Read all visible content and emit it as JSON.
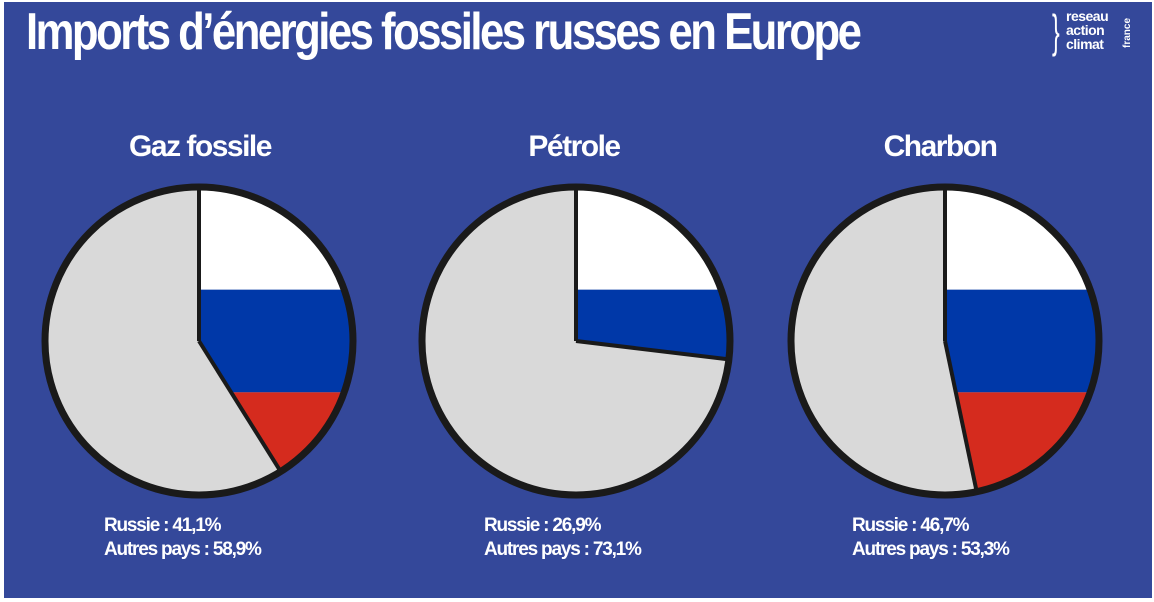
{
  "header": {
    "title": "Imports d’énergies fossiles russes en Europe",
    "logo_words": [
      "reseau",
      "action",
      "climat"
    ],
    "logo_country": "france"
  },
  "colors": {
    "background": "#34489a",
    "russia_white": "#ffffff",
    "russia_blue": "#0038a8",
    "russia_red": "#d52b1e",
    "other_countries": "#d9d9d9",
    "outline": "#1a1a1a"
  },
  "chart_data": [
    {
      "type": "pie",
      "title": "Gaz fossile",
      "labels": [
        "Russie",
        "Autres pays"
      ],
      "values": [
        41.1,
        58.9
      ],
      "legend": [
        "Russie : 41,1%",
        "Autres pays : 58,9%"
      ]
    },
    {
      "type": "pie",
      "title": "Pétrole",
      "labels": [
        "Russie",
        "Autres pays"
      ],
      "values": [
        26.9,
        73.1
      ],
      "legend": [
        "Russie : 26,9%",
        "Autres pays : 73,1%"
      ]
    },
    {
      "type": "pie",
      "title": "Charbon",
      "labels": [
        "Russie",
        "Autres pays"
      ],
      "values": [
        46.7,
        53.3
      ],
      "legend": [
        "Russie : 46,7%",
        "Autres pays : 53,3%"
      ]
    }
  ]
}
